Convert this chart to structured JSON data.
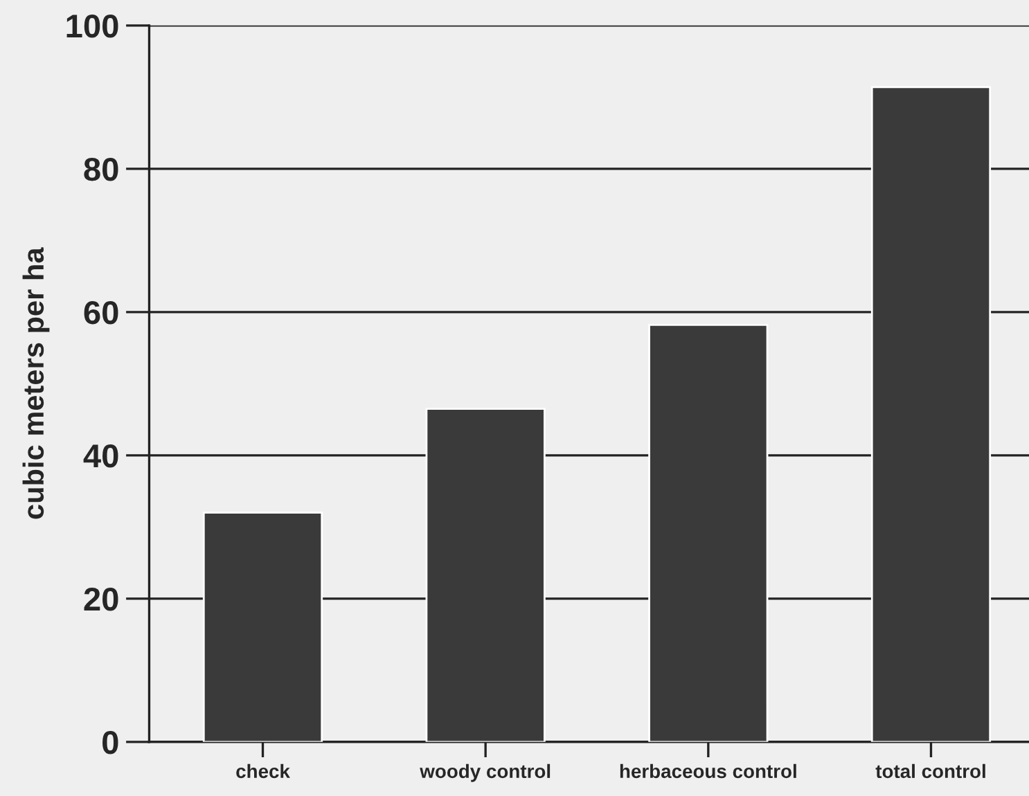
{
  "chart_data": {
    "type": "bar",
    "ylabel": "cubic meters per ha",
    "categories": [
      "check",
      "woody control",
      "herbaceous control",
      "total control"
    ],
    "values": [
      32,
      46.5,
      58.2,
      91.4
    ],
    "color": "#3a3a3a",
    "ylim": [
      0,
      100
    ],
    "yticks": [
      0,
      20,
      40,
      60,
      80,
      100
    ],
    "grid": "y"
  }
}
